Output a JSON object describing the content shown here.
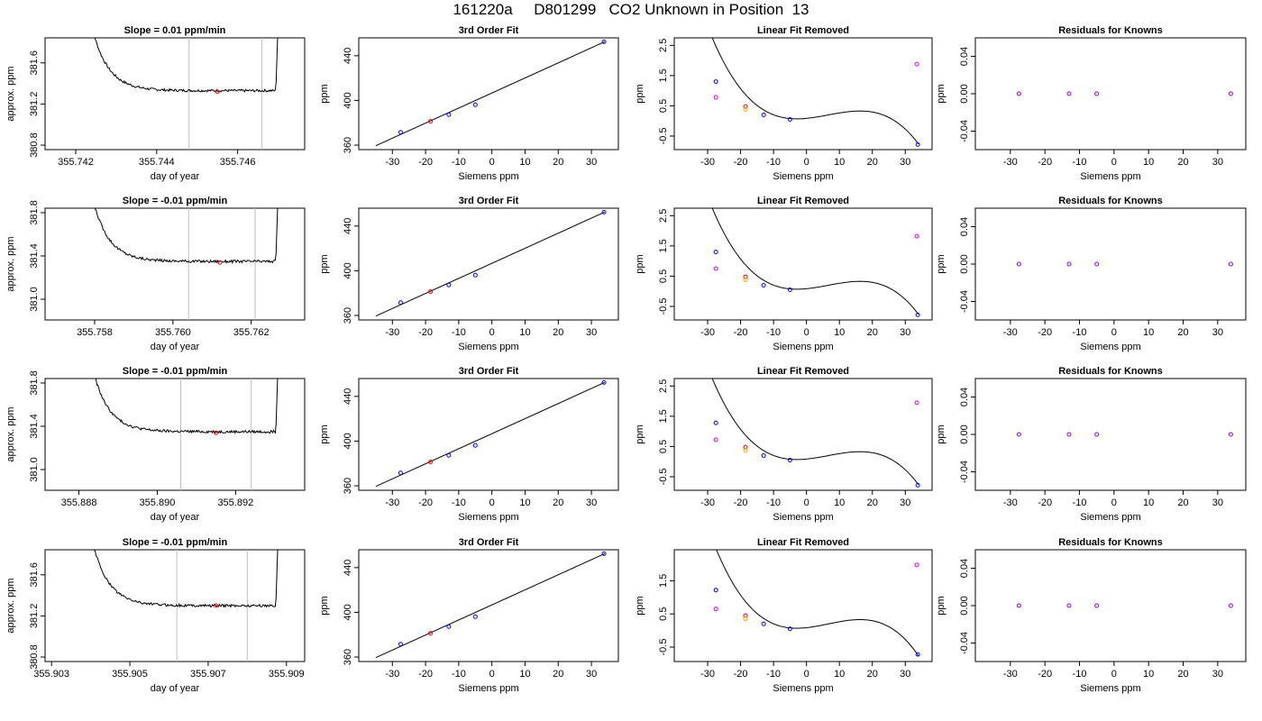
{
  "page": {
    "title": "161220a     D801299   CO2 Unknown in Position  13"
  },
  "colors": {
    "trace": "#000000",
    "marker_red": "#ff0000",
    "marker_blue": "#0000ff",
    "marker_orange": "#ffa500",
    "marker_magenta": "#cc00ff",
    "marker_purple": "#8800ff",
    "window_lines": "#bebebe"
  },
  "chart_data": [
    {
      "type": "line",
      "title": "Slope =  0.01  ppm/min",
      "xlabel": "day of year",
      "ylabel": "approx. ppm",
      "xlim": [
        355.7415,
        355.7474
      ],
      "ylim": [
        380.8,
        381.8
      ],
      "xticks": [
        "355.742",
        "355.744",
        "355.746"
      ],
      "yticks": [
        "380.8",
        "381.2",
        "381.6"
      ],
      "window": [
        355.7448,
        355.7466
      ],
      "plateau": 381.33,
      "mean_point": {
        "x": 355.7455,
        "y": 381.32
      }
    },
    {
      "type": "scatter",
      "title": "3rd Order Fit",
      "xlabel": "Siemens ppm",
      "ylabel": "ppm",
      "xlim": [
        -37,
        35
      ],
      "ylim": [
        360,
        452
      ],
      "xticks": [
        "-30",
        "-20",
        "-10",
        "0",
        "10",
        "20",
        "30"
      ],
      "yticks": [
        "360",
        "400",
        "440"
      ],
      "points": [
        {
          "x": -27.5,
          "y": 371.5,
          "color": "blue"
        },
        {
          "x": -18.5,
          "y": 381.3,
          "color": "red"
        },
        {
          "x": -13,
          "y": 387.3,
          "color": "blue"
        },
        {
          "x": -5,
          "y": 396.1,
          "color": "blue"
        },
        {
          "x": 33.8,
          "y": 452.5,
          "color": "blue"
        }
      ]
    },
    {
      "type": "scatter",
      "title": "Linear Fit Removed",
      "xlabel": "Siemens ppm",
      "ylabel": "ppm",
      "xlim": [
        -37,
        35
      ],
      "ylim": [
        -0.8,
        2.6
      ],
      "xticks": [
        "-30",
        "-20",
        "-10",
        "0",
        "10",
        "20",
        "30"
      ],
      "yticks": [
        "-0.5",
        "0.5",
        "1.5",
        "2.5"
      ],
      "points": [
        {
          "x": -27.5,
          "y": 1.3,
          "color": "blue"
        },
        {
          "x": -27.5,
          "y": 0.78,
          "color": "magenta"
        },
        {
          "x": -18.5,
          "y": 0.48,
          "color": "red"
        },
        {
          "x": -18.5,
          "y": 0.38,
          "color": "orange"
        },
        {
          "x": -13,
          "y": 0.2,
          "color": "blue"
        },
        {
          "x": -5,
          "y": 0.05,
          "color": "blue"
        },
        {
          "x": 33.5,
          "y": 1.88,
          "color": "magenta"
        },
        {
          "x": 33.8,
          "y": -0.78,
          "color": "blue"
        }
      ]
    },
    {
      "type": "scatter",
      "title": "Residuals for Knowns",
      "xlabel": "Siemens ppm",
      "ylabel": "ppm",
      "xlim": [
        -37,
        35
      ],
      "ylim": [
        -0.055,
        0.055
      ],
      "xticks": [
        "-30",
        "-20",
        "-10",
        "0",
        "10",
        "20",
        "30"
      ],
      "yticks": [
        "-0.04",
        "0.00",
        "0.04"
      ],
      "points": [
        {
          "x": -27.5,
          "y": 0,
          "color": "purple"
        },
        {
          "x": -13,
          "y": 0,
          "color": "purple"
        },
        {
          "x": -5,
          "y": 0,
          "color": "purple"
        },
        {
          "x": 33.8,
          "y": 0,
          "color": "purple"
        }
      ]
    },
    {
      "type": "line",
      "title": "Slope =  -0.01  ppm/min",
      "xlabel": "day of year",
      "ylabel": "approx. ppm",
      "xlim": [
        355.757,
        355.7631
      ],
      "ylim": [
        380.85,
        381.8
      ],
      "xticks": [
        "355.758",
        "355.760",
        "355.762"
      ],
      "yticks": [
        "381.0",
        "381.4",
        "381.8"
      ],
      "window": [
        355.7604,
        355.7621
      ],
      "plateau": 381.35,
      "mean_point": {
        "x": 355.7612,
        "y": 381.34
      }
    },
    {
      "type": "scatter",
      "title": "3rd Order Fit",
      "xlabel": "Siemens ppm",
      "ylabel": "ppm",
      "xlim": [
        -37,
        35
      ],
      "ylim": [
        360,
        452
      ],
      "xticks": [
        "-30",
        "-20",
        "-10",
        "0",
        "10",
        "20",
        "30"
      ],
      "yticks": [
        "360",
        "400",
        "440"
      ],
      "points": [
        {
          "x": -27.5,
          "y": 371.5,
          "color": "blue"
        },
        {
          "x": -18.5,
          "y": 381.3,
          "color": "red"
        },
        {
          "x": -13,
          "y": 387.3,
          "color": "blue"
        },
        {
          "x": -5,
          "y": 396.1,
          "color": "blue"
        },
        {
          "x": 33.8,
          "y": 452.5,
          "color": "blue"
        }
      ]
    },
    {
      "type": "scatter",
      "title": "Linear Fit Removed",
      "xlabel": "Siemens ppm",
      "ylabel": "ppm",
      "xlim": [
        -37,
        35
      ],
      "ylim": [
        -0.8,
        2.6
      ],
      "xticks": [
        "-30",
        "-20",
        "-10",
        "0",
        "10",
        "20",
        "30"
      ],
      "yticks": [
        "-0.5",
        "0.5",
        "1.5",
        "2.5"
      ],
      "points": [
        {
          "x": -27.5,
          "y": 1.3,
          "color": "blue"
        },
        {
          "x": -27.5,
          "y": 0.75,
          "color": "magenta"
        },
        {
          "x": -18.5,
          "y": 0.48,
          "color": "red"
        },
        {
          "x": -18.5,
          "y": 0.38,
          "color": "orange"
        },
        {
          "x": -13,
          "y": 0.2,
          "color": "blue"
        },
        {
          "x": -5,
          "y": 0.05,
          "color": "blue"
        },
        {
          "x": 33.5,
          "y": 1.82,
          "color": "magenta"
        },
        {
          "x": 33.8,
          "y": -0.78,
          "color": "blue"
        }
      ]
    },
    {
      "type": "scatter",
      "title": "Residuals for Knowns",
      "xlabel": "Siemens ppm",
      "ylabel": "ppm",
      "xlim": [
        -37,
        35
      ],
      "ylim": [
        -0.055,
        0.055
      ],
      "xticks": [
        "-30",
        "-20",
        "-10",
        "0",
        "10",
        "20",
        "30"
      ],
      "yticks": [
        "-0.04",
        "0.00",
        "0.04"
      ],
      "points": [
        {
          "x": -27.5,
          "y": 0,
          "color": "purple"
        },
        {
          "x": -13,
          "y": 0,
          "color": "purple"
        },
        {
          "x": -5,
          "y": 0,
          "color": "purple"
        },
        {
          "x": 33.8,
          "y": 0,
          "color": "purple"
        }
      ]
    },
    {
      "type": "line",
      "title": "Slope =  -0.01  ppm/min",
      "xlabel": "day of year",
      "ylabel": "approx. ppm",
      "xlim": [
        355.8874,
        355.8935
      ],
      "ylim": [
        380.85,
        381.8
      ],
      "xticks": [
        "355.888",
        "355.890",
        "355.892"
      ],
      "yticks": [
        "381.0",
        "381.4",
        "381.8"
      ],
      "window": [
        355.8906,
        355.8924
      ],
      "plateau": 381.35,
      "mean_point": {
        "x": 355.8915,
        "y": 381.34
      }
    },
    {
      "type": "scatter",
      "title": "3rd Order Fit",
      "xlabel": "Siemens ppm",
      "ylabel": "ppm",
      "xlim": [
        -37,
        35
      ],
      "ylim": [
        360,
        452
      ],
      "xticks": [
        "-30",
        "-20",
        "-10",
        "0",
        "10",
        "20",
        "30"
      ],
      "yticks": [
        "360",
        "400",
        "440"
      ],
      "points": [
        {
          "x": -27.5,
          "y": 371.5,
          "color": "blue"
        },
        {
          "x": -18.5,
          "y": 381.3,
          "color": "red"
        },
        {
          "x": -13,
          "y": 387.3,
          "color": "blue"
        },
        {
          "x": -5,
          "y": 396.1,
          "color": "blue"
        },
        {
          "x": 33.8,
          "y": 452.5,
          "color": "blue"
        }
      ]
    },
    {
      "type": "scatter",
      "title": "Linear Fit Removed",
      "xlabel": "Siemens ppm",
      "ylabel": "ppm",
      "xlim": [
        -37,
        35
      ],
      "ylim": [
        -0.8,
        2.6
      ],
      "xticks": [
        "-30",
        "-20",
        "-10",
        "0",
        "10",
        "20",
        "30"
      ],
      "yticks": [
        "-0.5",
        "0.5",
        "1.5",
        "2.5"
      ],
      "points": [
        {
          "x": -27.5,
          "y": 1.28,
          "color": "blue"
        },
        {
          "x": -27.5,
          "y": 0.72,
          "color": "magenta"
        },
        {
          "x": -18.5,
          "y": 0.48,
          "color": "red"
        },
        {
          "x": -18.5,
          "y": 0.38,
          "color": "orange"
        },
        {
          "x": -13,
          "y": 0.2,
          "color": "blue"
        },
        {
          "x": -5,
          "y": 0.05,
          "color": "blue"
        },
        {
          "x": 33.5,
          "y": 1.95,
          "color": "magenta"
        },
        {
          "x": 33.8,
          "y": -0.78,
          "color": "blue"
        }
      ]
    },
    {
      "type": "scatter",
      "title": "Residuals for Knowns",
      "xlabel": "Siemens ppm",
      "ylabel": "ppm",
      "xlim": [
        -37,
        35
      ],
      "ylim": [
        -0.055,
        0.055
      ],
      "xticks": [
        "-30",
        "-20",
        "-10",
        "0",
        "10",
        "20",
        "30"
      ],
      "yticks": [
        "-0.04",
        "0.00",
        "0.04"
      ],
      "points": [
        {
          "x": -27.5,
          "y": 0,
          "color": "purple"
        },
        {
          "x": -13,
          "y": 0,
          "color": "purple"
        },
        {
          "x": -5,
          "y": 0,
          "color": "purple"
        },
        {
          "x": 33.8,
          "y": 0,
          "color": "purple"
        }
      ]
    },
    {
      "type": "line",
      "title": "Slope =  -0.01  ppm/min",
      "xlabel": "day of year",
      "ylabel": "approx. ppm",
      "xlim": [
        355.9031,
        355.9092
      ],
      "ylim": [
        380.8,
        381.8
      ],
      "xticks": [
        "355.903",
        "355.905",
        "355.907",
        "355.909"
      ],
      "yticks": [
        "380.8",
        "381.2",
        "381.6"
      ],
      "window": [
        355.9062,
        355.908
      ],
      "plateau": 381.3,
      "mean_point": {
        "x": 355.9072,
        "y": 381.3
      }
    },
    {
      "type": "scatter",
      "title": "3rd Order Fit",
      "xlabel": "Siemens ppm",
      "ylabel": "ppm",
      "xlim": [
        -37,
        35
      ],
      "ylim": [
        360,
        452
      ],
      "xticks": [
        "-30",
        "-20",
        "-10",
        "0",
        "10",
        "20",
        "30"
      ],
      "yticks": [
        "360",
        "400",
        "440"
      ],
      "points": [
        {
          "x": -27.5,
          "y": 371.5,
          "color": "blue"
        },
        {
          "x": -18.5,
          "y": 381.3,
          "color": "red"
        },
        {
          "x": -13,
          "y": 387.3,
          "color": "blue"
        },
        {
          "x": -5,
          "y": 396.1,
          "color": "blue"
        },
        {
          "x": 33.8,
          "y": 452.5,
          "color": "blue"
        }
      ]
    },
    {
      "type": "scatter",
      "title": "Linear Fit Removed",
      "xlabel": "Siemens ppm",
      "ylabel": "ppm",
      "xlim": [
        -37,
        35
      ],
      "ylim": [
        -0.8,
        2.3
      ],
      "xticks": [
        "-30",
        "-20",
        "-10",
        "0",
        "10",
        "20",
        "30"
      ],
      "yticks": [
        "-0.5",
        "0.5",
        "1.5"
      ],
      "points": [
        {
          "x": -27.5,
          "y": 1.22,
          "color": "blue"
        },
        {
          "x": -27.5,
          "y": 0.65,
          "color": "magenta"
        },
        {
          "x": -18.5,
          "y": 0.45,
          "color": "red"
        },
        {
          "x": -18.5,
          "y": 0.35,
          "color": "orange"
        },
        {
          "x": -13,
          "y": 0.2,
          "color": "blue"
        },
        {
          "x": -5,
          "y": 0.05,
          "color": "blue"
        },
        {
          "x": 33.5,
          "y": 1.98,
          "color": "magenta"
        },
        {
          "x": 33.8,
          "y": -0.72,
          "color": "blue"
        }
      ]
    },
    {
      "type": "scatter",
      "title": "Residuals for Knowns",
      "xlabel": "Siemens ppm",
      "ylabel": "ppm",
      "xlim": [
        -37,
        35
      ],
      "ylim": [
        -0.055,
        0.055
      ],
      "xticks": [
        "-30",
        "-20",
        "-10",
        "0",
        "10",
        "20",
        "30"
      ],
      "yticks": [
        "-0.04",
        "0.00",
        "0.04"
      ],
      "points": [
        {
          "x": -27.5,
          "y": 0,
          "color": "purple"
        },
        {
          "x": -13,
          "y": 0,
          "color": "purple"
        },
        {
          "x": -5,
          "y": 0,
          "color": "purple"
        },
        {
          "x": 33.8,
          "y": 0,
          "color": "purple"
        }
      ]
    }
  ]
}
